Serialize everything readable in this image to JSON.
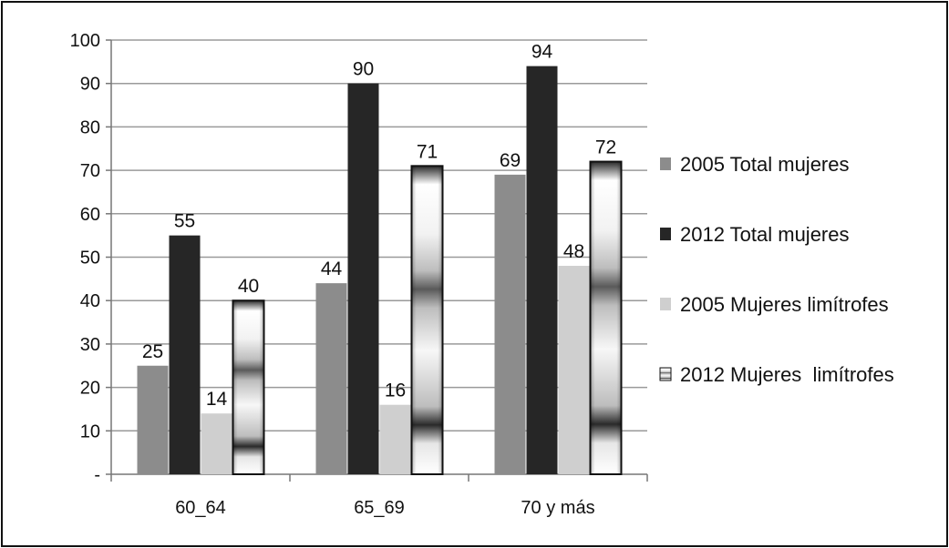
{
  "chart_data": {
    "type": "bar",
    "categories": [
      "60_64",
      "65_69",
      "70 y más"
    ],
    "series": [
      {
        "name": "2005 Total mujeres",
        "values": [
          25,
          44,
          69
        ],
        "labels": [
          "25",
          "44",
          "69"
        ],
        "color": "#8c8c8c",
        "pattern": "solid"
      },
      {
        "name": "2012 Total mujeres",
        "values": [
          55,
          90,
          94
        ],
        "labels": [
          "55",
          "90",
          "94"
        ],
        "color": "#262626",
        "pattern": "solid"
      },
      {
        "name": "2005 Mujeres limítrofes",
        "values": [
          14,
          16,
          48
        ],
        "labels": [
          "14",
          "16",
          "48"
        ],
        "color": "#cfcfcf",
        "pattern": "solid"
      },
      {
        "name": "2012 Mujeres  limítrofes",
        "values": [
          40,
          71,
          72
        ],
        "labels": [
          "40",
          "71",
          "72"
        ],
        "color": "#ffffff",
        "pattern": "banded-gradient"
      }
    ],
    "y_ticks": [
      "100",
      "90",
      "80",
      "70",
      "60",
      "50",
      "40",
      "30",
      "20",
      "10",
      "-"
    ],
    "ylim": [
      0,
      100
    ],
    "grid": true,
    "legend_position": "right",
    "title": "",
    "xlabel": "",
    "ylabel": ""
  }
}
